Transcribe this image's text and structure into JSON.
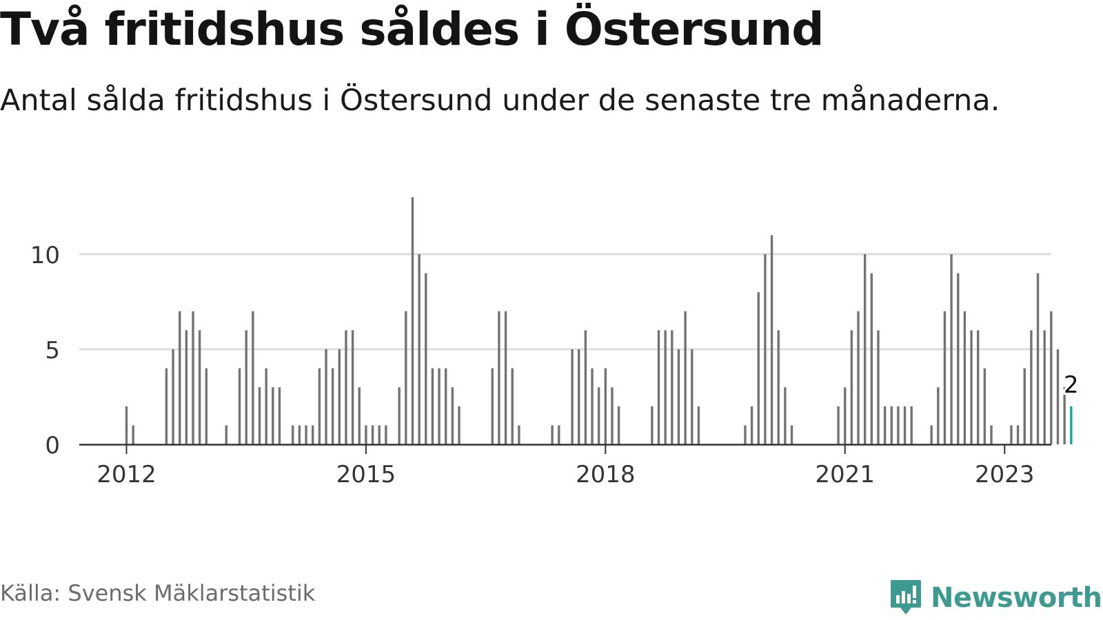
{
  "title": "Två fritidshus såldes i Östersund",
  "subtitle": "Antal sålda fritidshus i Östersund under de senaste tre månaderna.",
  "source": "Källa: Svensk Mäklarstatistik",
  "brand": {
    "name": "Newsworthy",
    "color": "#3d9a91",
    "icon": "newsworthy-logo-icon"
  },
  "chart_data": {
    "type": "bar",
    "x_start": "2012-01",
    "x_ticks": [
      "2012",
      "2015",
      "2018",
      "2021",
      "2023"
    ],
    "y_ticks": [
      "0",
      "5",
      "10"
    ],
    "ylim": [
      0,
      14
    ],
    "bar_color": "#737377",
    "highlight_color": "#1aa697",
    "gridlines": true,
    "highlight_label": "2",
    "values": [
      2,
      1,
      0,
      0,
      0,
      0,
      4,
      5,
      7,
      6,
      7,
      6,
      4,
      0,
      0,
      1,
      0,
      4,
      6,
      7,
      3,
      4,
      3,
      3,
      0,
      1,
      1,
      1,
      1,
      4,
      5,
      4,
      5,
      6,
      6,
      3,
      1,
      1,
      1,
      1,
      0,
      3,
      7,
      13,
      10,
      9,
      4,
      4,
      4,
      3,
      2,
      0,
      0,
      0,
      0,
      4,
      7,
      7,
      4,
      1,
      0,
      0,
      0,
      0,
      1,
      1,
      0,
      5,
      5,
      6,
      4,
      3,
      4,
      3,
      2,
      0,
      0,
      0,
      0,
      2,
      6,
      6,
      6,
      5,
      7,
      5,
      2,
      0,
      0,
      0,
      0,
      0,
      0,
      1,
      2,
      8,
      10,
      11,
      6,
      3,
      1,
      0,
      0,
      0,
      0,
      0,
      0,
      2,
      3,
      6,
      7,
      10,
      9,
      6,
      2,
      2,
      2,
      2,
      2,
      0,
      0,
      1,
      3,
      7,
      10,
      9,
      7,
      6,
      6,
      4,
      1,
      0,
      0,
      1,
      1,
      4,
      6,
      9,
      6,
      7,
      5,
      3,
      2
    ]
  }
}
